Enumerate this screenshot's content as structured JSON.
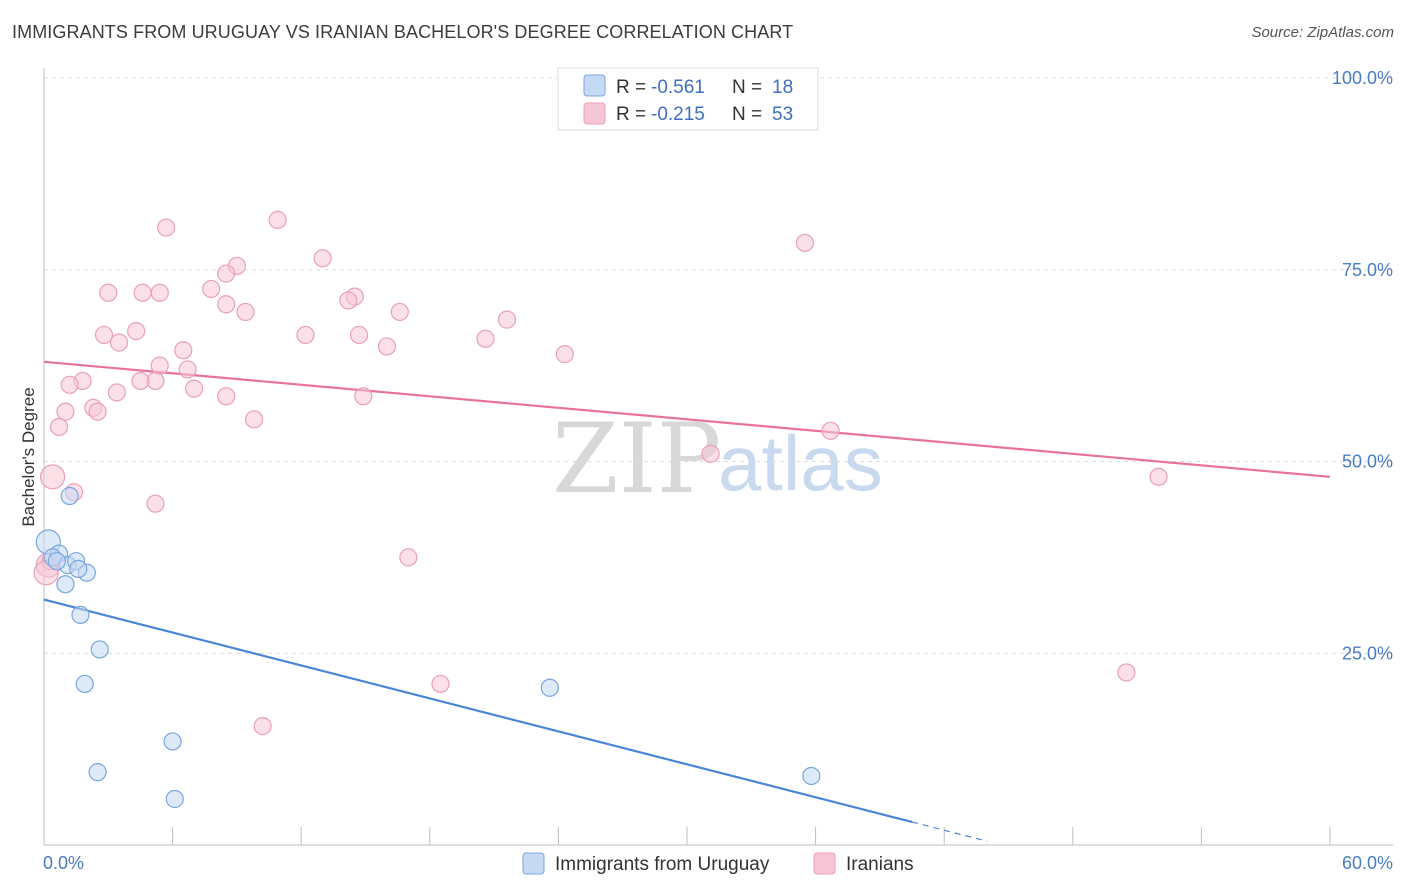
{
  "title": "IMMIGRANTS FROM URUGUAY VS IRANIAN BACHELOR'S DEGREE CORRELATION CHART",
  "source": "Source: ZipAtlas.com",
  "watermark": {
    "zip": "ZIP",
    "atlas": "atlas"
  },
  "colors": {
    "blue": "#4a86d8",
    "blue_fill": "#c5d9f3",
    "pink": "#e8729a",
    "pink_fill": "#f7c6d6",
    "tick": "#4a7cc4"
  },
  "legend": {
    "r_label": "R =",
    "n_label": "N =",
    "rows": [
      {
        "name": "Immigrants from Uruguay",
        "r": "-0.561",
        "n": "18"
      },
      {
        "name": "Iranians",
        "r": "-0.215",
        "n": "53"
      }
    ]
  },
  "chart_data": {
    "type": "scatter",
    "title": "IMMIGRANTS FROM URUGUAY VS IRANIAN BACHELOR'S DEGREE CORRELATION CHART",
    "xlabel": "",
    "ylabel": "Bachelor's Degree",
    "xlim": [
      0,
      60
    ],
    "ylim": [
      0,
      100
    ],
    "x_tick_labels": [
      "0.0%",
      "60.0%"
    ],
    "y_tick_labels": [
      {
        "value": 100,
        "label": "100.0%"
      },
      {
        "value": 75,
        "label": "75.0%"
      },
      {
        "value": 50,
        "label": "50.0%"
      },
      {
        "value": 25,
        "label": "25.0%"
      }
    ],
    "series": [
      {
        "name": "Immigrants from Uruguay",
        "color": "#4a86d8",
        "points": [
          [
            0.2,
            39.5
          ],
          [
            0.7,
            38.0
          ],
          [
            0.4,
            37.5
          ],
          [
            1.2,
            45.5
          ],
          [
            1.1,
            36.5
          ],
          [
            1.5,
            37.0
          ],
          [
            2.0,
            35.5
          ],
          [
            1.6,
            36.0
          ],
          [
            1.0,
            34.0
          ],
          [
            1.7,
            30.0
          ],
          [
            2.6,
            25.5
          ],
          [
            1.9,
            21.0
          ],
          [
            2.5,
            9.5
          ],
          [
            23.6,
            20.5
          ],
          [
            6.0,
            13.5
          ],
          [
            6.1,
            6.0
          ],
          [
            35.8,
            9.0
          ],
          [
            0.6,
            37.0
          ]
        ],
        "trend": {
          "x0": 0,
          "y0": 32.0,
          "x1": 40.5,
          "y1": 3.0,
          "dash_x1": 44.0,
          "dash_y1": 0.5
        }
      },
      {
        "name": "Iranians",
        "color": "#e8729a",
        "points": [
          [
            5.7,
            80.5
          ],
          [
            10.9,
            81.5
          ],
          [
            35.5,
            78.5
          ],
          [
            13.0,
            76.5
          ],
          [
            7.8,
            72.5
          ],
          [
            5.4,
            72.0
          ],
          [
            3.0,
            72.0
          ],
          [
            4.6,
            72.0
          ],
          [
            9.0,
            75.5
          ],
          [
            8.5,
            74.5
          ],
          [
            14.5,
            71.5
          ],
          [
            14.2,
            71.0
          ],
          [
            8.5,
            70.5
          ],
          [
            9.4,
            69.5
          ],
          [
            16.6,
            69.5
          ],
          [
            21.6,
            68.5
          ],
          [
            2.8,
            66.5
          ],
          [
            4.3,
            67.0
          ],
          [
            12.2,
            66.5
          ],
          [
            14.7,
            66.5
          ],
          [
            3.5,
            65.5
          ],
          [
            16.0,
            65.0
          ],
          [
            20.6,
            66.0
          ],
          [
            6.5,
            64.5
          ],
          [
            24.3,
            64.0
          ],
          [
            5.4,
            62.5
          ],
          [
            6.7,
            62.0
          ],
          [
            1.8,
            60.5
          ],
          [
            1.2,
            60.0
          ],
          [
            5.2,
            60.5
          ],
          [
            4.5,
            60.5
          ],
          [
            7.0,
            59.5
          ],
          [
            3.4,
            59.0
          ],
          [
            8.5,
            58.5
          ],
          [
            14.9,
            58.5
          ],
          [
            2.3,
            57.0
          ],
          [
            1.0,
            56.5
          ],
          [
            2.5,
            56.5
          ],
          [
            9.8,
            55.5
          ],
          [
            0.7,
            54.5
          ],
          [
            36.7,
            54.0
          ],
          [
            31.1,
            51.0
          ],
          [
            0.4,
            48.0
          ],
          [
            52.0,
            48.0
          ],
          [
            1.4,
            46.0
          ],
          [
            5.2,
            44.5
          ],
          [
            17.0,
            37.5
          ],
          [
            0.2,
            36.5
          ],
          [
            0.3,
            37.0
          ],
          [
            18.5,
            21.0
          ],
          [
            50.5,
            22.5
          ],
          [
            10.2,
            15.5
          ],
          [
            0.1,
            35.5
          ]
        ],
        "trend": {
          "x0": 0,
          "y0": 63.0,
          "x1": 60,
          "y1": 48.0
        }
      }
    ]
  }
}
